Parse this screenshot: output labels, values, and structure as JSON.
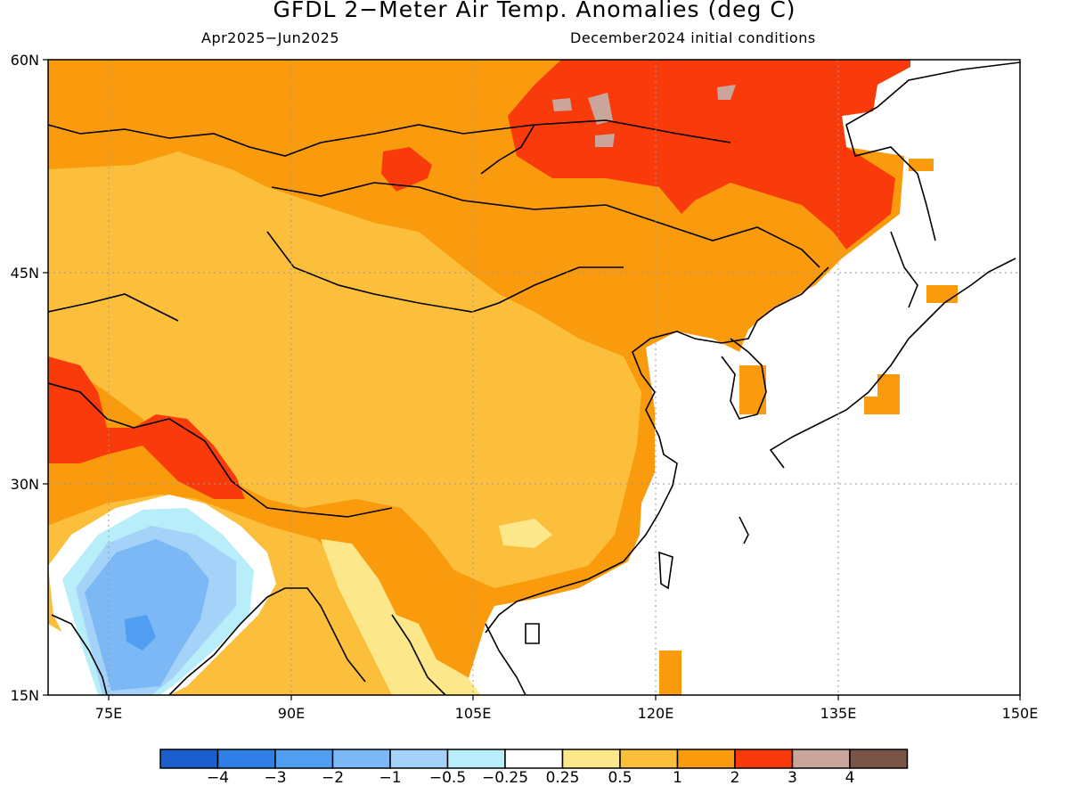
{
  "title": "GFDL 2−Meter Air Temp. Anomalies (deg C)",
  "subtitle_left": "Apr2025−Jun2025",
  "subtitle_right": "December2024 initial conditions",
  "lat_labels": [
    "60N",
    "45N",
    "30N",
    "15N"
  ],
  "lon_labels": [
    "75E",
    "90E",
    "105E",
    "120E",
    "135E",
    "150E"
  ],
  "colorbar": {
    "labels": [
      "−4",
      "−3",
      "−2",
      "−1",
      "−0.5",
      "−0.25",
      "0.25",
      "0.5",
      "1",
      "2",
      "3",
      "4"
    ],
    "colors": [
      "#1b5fcf",
      "#2f7fe6",
      "#4f9ef2",
      "#7bb8f5",
      "#a4d2f8",
      "#b8eefa",
      "#ffffff",
      "#fde78b",
      "#fbbf3c",
      "#f99b0c",
      "#f93a0a",
      "#c9a59c",
      "#7a5447"
    ]
  },
  "colors": {
    "ocean": "#ffffff",
    "coast": "#000000",
    "grid": "#9a9a9a"
  }
}
